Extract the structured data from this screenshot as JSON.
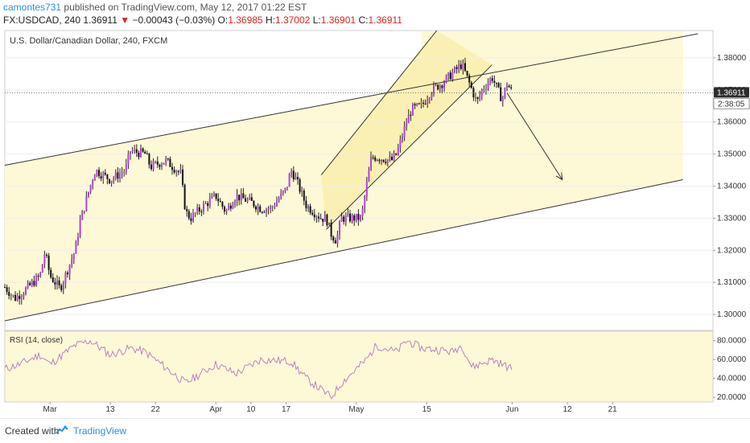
{
  "header": {
    "author": "camontes731",
    "published": "published on TradingView.com, May 12, 2017 01:22 EST",
    "symbol": "FX:USDCAD, 240",
    "last": "1.36911",
    "change_arrow": "▼",
    "change": "−0.00043 (−0.03%)",
    "open_label": "O:",
    "open": "1.36985",
    "high_label": "H:",
    "high": "1.37002",
    "low_label": "L:",
    "low": "1.36901",
    "close_label": "C:",
    "close": "1.36911"
  },
  "footer": {
    "created_label": "Created with",
    "brand": "TradingView",
    "logo_icon": "tradingview-cloud-icon"
  },
  "chart_data": [
    {
      "type": "candlestick",
      "title": "U.S. Dollar/Canadian Dollar, 240, FXCM",
      "ylim": [
        1.295,
        1.3885
      ],
      "yticks": [
        1.3,
        1.31,
        1.32,
        1.33,
        1.34,
        1.35,
        1.36,
        1.37,
        1.38
      ],
      "ytick_labels": [
        "1.30000",
        "1.31000",
        "1.32000",
        "1.33000",
        "1.34000",
        "1.35000",
        "1.36000",
        "1.37000",
        "1.38000"
      ],
      "current_price": "1.36911",
      "countdown": "2:38:05",
      "xticks": [
        "Mar",
        "13",
        "22",
        "Apr",
        "10",
        "17",
        "May",
        "15",
        "Jun",
        "12",
        "21"
      ],
      "price_path": [
        [
          "2017-02-20",
          1.3085
        ],
        [
          "2017-02-22",
          1.305
        ],
        [
          "2017-02-24",
          1.3075
        ],
        [
          "2017-02-27",
          1.312
        ],
        [
          "2017-02-28",
          1.3195
        ],
        [
          "2017-03-01",
          1.312
        ],
        [
          "2017-03-03",
          1.308
        ],
        [
          "2017-03-06",
          1.32
        ],
        [
          "2017-03-07",
          1.329
        ],
        [
          "2017-03-09",
          1.34
        ],
        [
          "2017-03-10",
          1.345
        ],
        [
          "2017-03-13",
          1.342
        ],
        [
          "2017-03-16",
          1.345
        ],
        [
          "2017-03-17",
          1.351
        ],
        [
          "2017-03-20",
          1.35
        ],
        [
          "2017-03-21",
          1.346
        ],
        [
          "2017-03-24",
          1.348
        ],
        [
          "2017-03-27",
          1.344
        ],
        [
          "2017-03-28",
          1.332
        ],
        [
          "2017-03-29",
          1.33
        ],
        [
          "2017-03-31",
          1.333
        ],
        [
          "2017-04-03",
          1.337
        ],
        [
          "2017-04-05",
          1.332
        ],
        [
          "2017-04-07",
          1.337
        ],
        [
          "2017-04-10",
          1.335
        ],
        [
          "2017-04-12",
          1.333
        ],
        [
          "2017-04-14",
          1.333
        ],
        [
          "2017-04-17",
          1.339
        ],
        [
          "2017-04-18",
          1.345
        ],
        [
          "2017-04-19",
          1.342
        ],
        [
          "2017-04-21",
          1.334
        ],
        [
          "2017-04-24",
          1.33
        ],
        [
          "2017-04-25",
          1.33
        ],
        [
          "2017-04-26",
          1.325
        ],
        [
          "2017-04-27",
          1.323
        ],
        [
          "2017-04-28",
          1.33
        ],
        [
          "2017-05-01",
          1.33
        ],
        [
          "2017-05-02",
          1.33
        ],
        [
          "2017-05-03",
          1.34
        ],
        [
          "2017-05-04",
          1.349
        ],
        [
          "2017-05-05",
          1.349
        ],
        [
          "2017-05-08",
          1.348
        ],
        [
          "2017-05-09",
          1.35
        ],
        [
          "2017-05-11",
          1.36
        ],
        [
          "2017-05-12",
          1.364
        ],
        [
          "2017-05-14",
          1.365
        ],
        [
          "2017-05-16",
          1.37
        ],
        [
          "2017-05-18",
          1.372
        ],
        [
          "2017-05-20",
          1.375
        ],
        [
          "2017-05-22",
          1.378
        ],
        [
          "2017-05-23",
          1.374
        ],
        [
          "2017-05-24",
          1.37
        ],
        [
          "2017-05-25",
          1.366
        ],
        [
          "2017-05-26",
          1.37
        ],
        [
          "2017-05-28",
          1.374
        ],
        [
          "2017-05-30",
          1.367
        ],
        [
          "2017-05-31",
          1.372
        ],
        [
          "2017-06-01",
          1.3691
        ]
      ],
      "channel_upper": [
        [
          "2017-02-20",
          1.3465
        ],
        [
          "2017-07-08",
          1.3875
        ]
      ],
      "channel_lower": [
        [
          "2017-02-20",
          1.298
        ],
        [
          "2017-07-05",
          1.342
        ]
      ],
      "inner_channel_upper": [
        [
          "2017-04-24",
          1.3435
        ],
        [
          "2017-05-17",
          1.3885
        ]
      ],
      "inner_channel_lower": [
        [
          "2017-04-25",
          1.3265
        ],
        [
          "2017-05-28",
          1.3778
        ]
      ],
      "projection_arrow": [
        [
          "2017-05-31",
          1.369
        ],
        [
          "2017-06-11",
          1.342
        ]
      ]
    },
    {
      "type": "line",
      "title": "RSI (14, close)",
      "ylim": [
        15,
        90
      ],
      "yticks": [
        20,
        40,
        60,
        80
      ],
      "ytick_labels": [
        "20.0000",
        "40.0000",
        "60.0000",
        "80.0000"
      ],
      "rsi_path": [
        [
          "2017-02-20",
          50
        ],
        [
          "2017-02-23",
          55
        ],
        [
          "2017-02-27",
          65
        ],
        [
          "2017-03-01",
          55
        ],
        [
          "2017-03-06",
          75
        ],
        [
          "2017-03-09",
          80
        ],
        [
          "2017-03-13",
          65
        ],
        [
          "2017-03-17",
          72
        ],
        [
          "2017-03-20",
          68
        ],
        [
          "2017-03-28",
          35
        ],
        [
          "2017-04-03",
          55
        ],
        [
          "2017-04-07",
          45
        ],
        [
          "2017-04-12",
          60
        ],
        [
          "2017-04-18",
          58
        ],
        [
          "2017-04-21",
          40
        ],
        [
          "2017-04-26",
          20
        ],
        [
          "2017-04-28",
          35
        ],
        [
          "2017-05-03",
          60
        ],
        [
          "2017-05-05",
          75
        ],
        [
          "2017-05-09",
          68
        ],
        [
          "2017-05-11",
          80
        ],
        [
          "2017-05-14",
          72
        ],
        [
          "2017-05-18",
          70
        ],
        [
          "2017-05-20",
          68
        ],
        [
          "2017-05-22",
          75
        ],
        [
          "2017-05-24",
          52
        ],
        [
          "2017-05-28",
          60
        ],
        [
          "2017-06-01",
          50
        ]
      ]
    }
  ],
  "colors": {
    "bull_body": "#b23fe0",
    "bear_body": "#111111",
    "wick": "#222222",
    "channel_fill": "#fdf8d6",
    "inner_fill": "#fbf0b4",
    "channel_line": "#333333",
    "rsi_line": "#b07ac0",
    "grid": "#eeeeee",
    "axis_text": "#333333",
    "price_label_bg": "#2c2c2c"
  }
}
